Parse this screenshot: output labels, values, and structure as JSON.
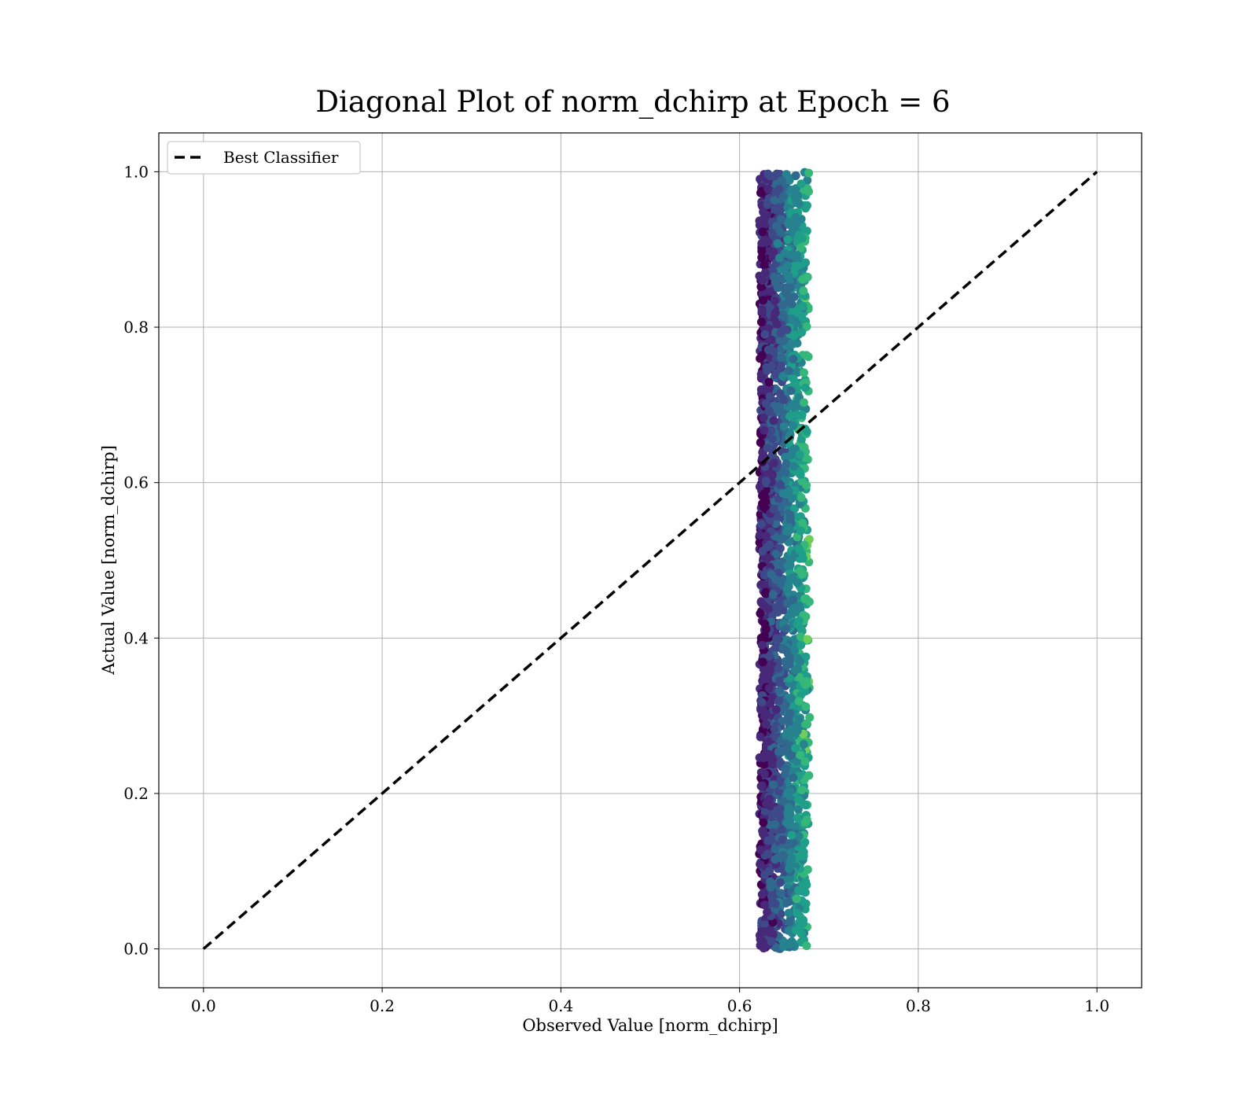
{
  "chart_data": {
    "type": "scatter",
    "title": "Diagonal Plot of norm_dchirp at Epoch = 6",
    "xlabel": "Observed Value [norm_dchirp]",
    "ylabel": "Actual Value [norm_dchirp]",
    "xlim": [
      -0.05,
      1.05
    ],
    "ylim": [
      -0.05,
      1.05
    ],
    "xticks": [
      "0.0",
      "0.2",
      "0.4",
      "0.6",
      "0.8",
      "1.0"
    ],
    "yticks": [
      "0.0",
      "0.2",
      "0.4",
      "0.6",
      "0.8",
      "1.0"
    ],
    "grid": true,
    "colormap": "viridis",
    "legend": {
      "placement": "upper left",
      "entries": [
        "Best Classifier"
      ]
    },
    "reference_line": {
      "name": "Best Classifier",
      "x": [
        0,
        1
      ],
      "y": [
        0,
        1
      ],
      "style": "dashed",
      "color": "#000000"
    },
    "scatter_cloud": {
      "x_center": 0.645,
      "x_range": [
        0.625,
        0.685
      ],
      "y_range": [
        0.0,
        1.0
      ],
      "approx_points": 2500
    }
  }
}
